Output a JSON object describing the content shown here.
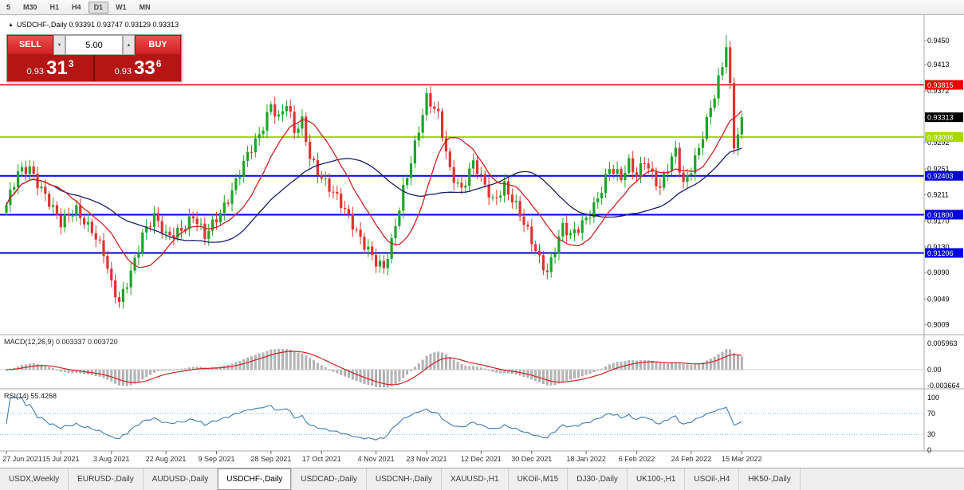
{
  "toolbar": {
    "timeframes": [
      {
        "label": "5",
        "active": false
      },
      {
        "label": "M30",
        "active": false
      },
      {
        "label": "H1",
        "active": false
      },
      {
        "label": "H4",
        "active": false
      },
      {
        "label": "D1",
        "active": true
      },
      {
        "label": "W1",
        "active": false
      },
      {
        "label": "MN",
        "active": false
      }
    ]
  },
  "chart": {
    "title": "USDCHF-,Daily 0.93391 0.93747 0.93129 0.93313",
    "symbol": "USDCHF-,Daily",
    "ohlc": {
      "open": "0.93391",
      "high": "0.93747",
      "low": "0.93129",
      "close": "0.93313"
    }
  },
  "trade_panel": {
    "sell_label": "SELL",
    "buy_label": "BUY",
    "volume": "5.00",
    "sell_price": {
      "small": "0.93",
      "big": "31",
      "sup": "3"
    },
    "buy_price": {
      "small": "0.93",
      "big": "33",
      "sup": "6"
    }
  },
  "chart_data": {
    "type": "candlestick",
    "symbol": "USDCHF",
    "timeframe": "Daily",
    "bars": 190,
    "price_range": [
      0.8995,
      0.947
    ],
    "axis_labels": [
      0.945,
      0.9413,
      0.9372,
      0.9331,
      0.9292,
      0.9251,
      0.9211,
      0.917,
      0.913,
      0.909,
      0.9049,
      0.9009
    ],
    "anchors": [
      [
        0,
        0.9195
      ],
      [
        3,
        0.924
      ],
      [
        6,
        0.9252
      ],
      [
        10,
        0.9215
      ],
      [
        14,
        0.9162
      ],
      [
        18,
        0.9188
      ],
      [
        22,
        0.916
      ],
      [
        25,
        0.9118
      ],
      [
        27,
        0.9066
      ],
      [
        29,
        0.9042
      ],
      [
        32,
        0.9096
      ],
      [
        35,
        0.915
      ],
      [
        38,
        0.9172
      ],
      [
        41,
        0.9146
      ],
      [
        45,
        0.9162
      ],
      [
        48,
        0.9176
      ],
      [
        51,
        0.9142
      ],
      [
        54,
        0.9176
      ],
      [
        58,
        0.922
      ],
      [
        62,
        0.9268
      ],
      [
        65,
        0.9302
      ],
      [
        68,
        0.9356
      ],
      [
        70,
        0.9332
      ],
      [
        72,
        0.9352
      ],
      [
        74,
        0.9304
      ],
      [
        76,
        0.9322
      ],
      [
        78,
        0.9272
      ],
      [
        81,
        0.9242
      ],
      [
        84,
        0.9212
      ],
      [
        87,
        0.9182
      ],
      [
        90,
        0.9156
      ],
      [
        93,
        0.913
      ],
      [
        95,
        0.9106
      ],
      [
        97,
        0.9092
      ],
      [
        99,
        0.9132
      ],
      [
        102,
        0.9222
      ],
      [
        105,
        0.9292
      ],
      [
        108,
        0.9358
      ],
      [
        111,
        0.933
      ],
      [
        114,
        0.9252
      ],
      [
        117,
        0.9222
      ],
      [
        120,
        0.9258
      ],
      [
        122,
        0.9232
      ],
      [
        125,
        0.9202
      ],
      [
        128,
        0.923
      ],
      [
        131,
        0.9192
      ],
      [
        133,
        0.9162
      ],
      [
        135,
        0.9136
      ],
      [
        137,
        0.9112
      ],
      [
        139,
        0.9096
      ],
      [
        141,
        0.913
      ],
      [
        143,
        0.916
      ],
      [
        145,
        0.9142
      ],
      [
        147,
        0.9156
      ],
      [
        149,
        0.9176
      ],
      [
        152,
        0.921
      ],
      [
        155,
        0.925
      ],
      [
        158,
        0.9232
      ],
      [
        160,
        0.926
      ],
      [
        162,
        0.9246
      ],
      [
        164,
        0.927
      ],
      [
        166,
        0.924
      ],
      [
        168,
        0.9216
      ],
      [
        170,
        0.925
      ],
      [
        172,
        0.928
      ],
      [
        174,
        0.9232
      ],
      [
        176,
        0.9256
      ],
      [
        178,
        0.9282
      ],
      [
        180,
        0.932
      ],
      [
        182,
        0.9362
      ],
      [
        184,
        0.9412
      ],
      [
        185,
        0.9448
      ],
      [
        186,
        0.9382
      ],
      [
        187,
        0.9292
      ],
      [
        188,
        0.9312
      ],
      [
        189,
        0.93313
      ]
    ],
    "spike": {
      "bar": 185,
      "high": 0.9459
    },
    "last_close": 0.93313,
    "date_labels": [
      {
        "bar": 0,
        "label": "27 Jun 2021"
      },
      {
        "bar": 14,
        "label": "15 Jul 2021"
      },
      {
        "bar": 27,
        "label": "3 Aug 2021"
      },
      {
        "bar": 41,
        "label": "22 Aug 2021"
      },
      {
        "bar": 54,
        "label": "9 Sep 2021"
      },
      {
        "bar": 68,
        "label": "28 Sep 2021"
      },
      {
        "bar": 81,
        "label": "17 Oct 2021"
      },
      {
        "bar": 95,
        "label": "4 Nov 2021"
      },
      {
        "bar": 108,
        "label": "23 Nov 2021"
      },
      {
        "bar": 122,
        "label": "12 Dec 2021"
      },
      {
        "bar": 135,
        "label": "30 Dec 2021"
      },
      {
        "bar": 149,
        "label": "18 Jan 2022"
      },
      {
        "bar": 162,
        "label": "6 Feb 2022"
      },
      {
        "bar": 176,
        "label": "24 Feb 2022"
      },
      {
        "bar": 189,
        "label": "15 Mar 2022"
      }
    ],
    "levels": [
      {
        "price": 0.93815,
        "tag": "0.93815",
        "color": "#e80000",
        "width": 1.5
      },
      {
        "price": 0.93006,
        "tag": "0.93006",
        "color": "#a6d900",
        "width": 2
      },
      {
        "price": 0.92403,
        "tag": "0.92403",
        "color": "#0000e0",
        "width": 2
      },
      {
        "price": 0.918,
        "tag": "0.91800",
        "color": "#0000e0",
        "width": 2
      },
      {
        "price": 0.91206,
        "tag": "0.91206",
        "color": "#0000e0",
        "width": 2
      }
    ],
    "current": {
      "price": 0.93313,
      "tag": "0.93313",
      "color": "#000000"
    },
    "ma_fast": {
      "period": 13,
      "color": "#cc2222"
    },
    "ma_slow": {
      "period": 34,
      "color": "#1a1a6e"
    },
    "colors": {
      "up": "#1fa32a",
      "down": "#e03232",
      "histogram": "#b6b6b6",
      "rsi": "#3f7cb6"
    }
  },
  "macd_panel": {
    "label": "MACD(12,26,9)",
    "values": [
      "0.003337",
      "0.003720"
    ],
    "axis": [
      "0.005963",
      "0.00",
      "-0.003664"
    ],
    "params": {
      "fast": 12,
      "slow": 26,
      "signal": 9
    }
  },
  "rsi_panel": {
    "label": "RSI(14)",
    "value": "55.4268",
    "axis": [
      "100",
      "70",
      "30",
      "0"
    ],
    "period": 14,
    "levels": [
      70,
      30
    ]
  },
  "tabs": [
    {
      "label": "USDX,Weekly",
      "active": false
    },
    {
      "label": "EURUSD-,Daily",
      "active": false
    },
    {
      "label": "AUDUSD-,Daily",
      "active": false
    },
    {
      "label": "USDCHF-,Daily",
      "active": true
    },
    {
      "label": "USDCAD-,Daily",
      "active": false
    },
    {
      "label": "USDCNH-,Daily",
      "active": false
    },
    {
      "label": "XAUUSD-,H1",
      "active": false
    },
    {
      "label": "UKOil-,M15",
      "active": false
    },
    {
      "label": "DJ30-,Daily",
      "active": false
    },
    {
      "label": "UK100-,H1",
      "active": false
    },
    {
      "label": "USOil-,H4",
      "active": false
    },
    {
      "label": "HK50-,Daily",
      "active": false
    }
  ]
}
